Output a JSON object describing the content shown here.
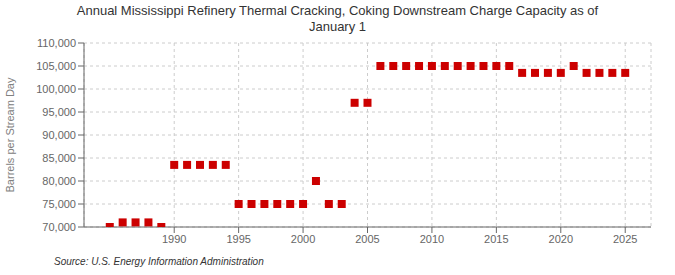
{
  "chart_data": {
    "type": "scatter",
    "title": "Annual Mississippi Refinery Thermal Cracking, Coking Downstream Charge Capacity as of\nJanuary 1",
    "ylabel": "Barrels per Stream Day",
    "annotation": "Source: U.S. Energy Information Administration",
    "color": "#cc0000",
    "marker": "square",
    "grid": true,
    "x": [
      1985,
      1986,
      1987,
      1988,
      1989,
      1990,
      1991,
      1992,
      1993,
      1994,
      1995,
      1996,
      1997,
      1998,
      1999,
      2000,
      2001,
      2002,
      2003,
      2004,
      2005,
      2006,
      2007,
      2008,
      2009,
      2010,
      2011,
      2012,
      2013,
      2014,
      2015,
      2016,
      2017,
      2018,
      2019,
      2020,
      2021,
      2022,
      2023,
      2024,
      2025
    ],
    "values": [
      70000,
      71000,
      71000,
      71000,
      70000,
      83500,
      83500,
      83500,
      83500,
      83500,
      75000,
      75000,
      75000,
      75000,
      75000,
      75000,
      80000,
      75000,
      75000,
      97000,
      97000,
      105000,
      105000,
      105000,
      105000,
      105000,
      105000,
      105000,
      105000,
      105000,
      105000,
      105000,
      103500,
      103500,
      103500,
      103500,
      105000,
      103500,
      103500,
      103500,
      103500
    ],
    "xlim": [
      1983,
      2027
    ],
    "xticks": [
      1990,
      1995,
      2000,
      2005,
      2010,
      2015,
      2020,
      2025
    ],
    "ylim": [
      70000,
      110000
    ],
    "yticks": [
      {
        "value": 70000,
        "label": "70,000"
      },
      {
        "value": 75000,
        "label": "75,000"
      },
      {
        "value": 80000,
        "label": "80,000"
      },
      {
        "value": 85000,
        "label": "85,000"
      },
      {
        "value": 90000,
        "label": "90,000"
      },
      {
        "value": 95000,
        "label": "95,000"
      },
      {
        "value": 100000,
        "label": "100,000"
      },
      {
        "value": 105000,
        "label": "105,000"
      },
      {
        "value": 110000,
        "label": "110,000"
      }
    ]
  }
}
